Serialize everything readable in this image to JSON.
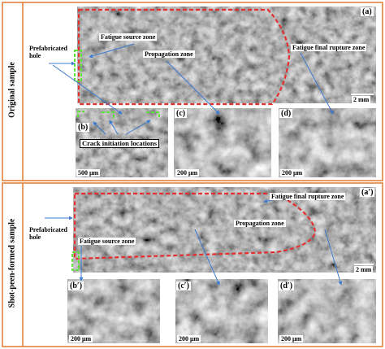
{
  "panels": [
    {
      "side_label": "Original sample",
      "main": {
        "label": "(a)",
        "prefabricated_hole": "Prefabricated hole",
        "fatigue_source": "Fatigue source zone",
        "propagation": "Propagation zone",
        "final_rupture": "Fatigue final rupture zone",
        "scale": "2 mm"
      },
      "details": [
        {
          "label": "(b)",
          "scale": "500 μm",
          "note": "Crack initiation locations"
        },
        {
          "label": "(c)",
          "scale": "200 μm"
        },
        {
          "label": "(d)",
          "scale": "200 μm"
        }
      ]
    },
    {
      "side_label": "Shot-peen-formed sample",
      "main": {
        "label": "(a′)",
        "prefabricated_hole": "Prefabricated hole",
        "fatigue_source": "Fatigue source zone",
        "propagation": "Propagation zone",
        "final_rupture": "Fatigue final rupture zone",
        "scale": "2 mm"
      },
      "details": [
        {
          "label": "(b′)",
          "scale": "200 μm"
        },
        {
          "label": "(c′)",
          "scale": "200 μm"
        },
        {
          "label": "(d′)",
          "scale": "200 μm"
        }
      ]
    }
  ]
}
